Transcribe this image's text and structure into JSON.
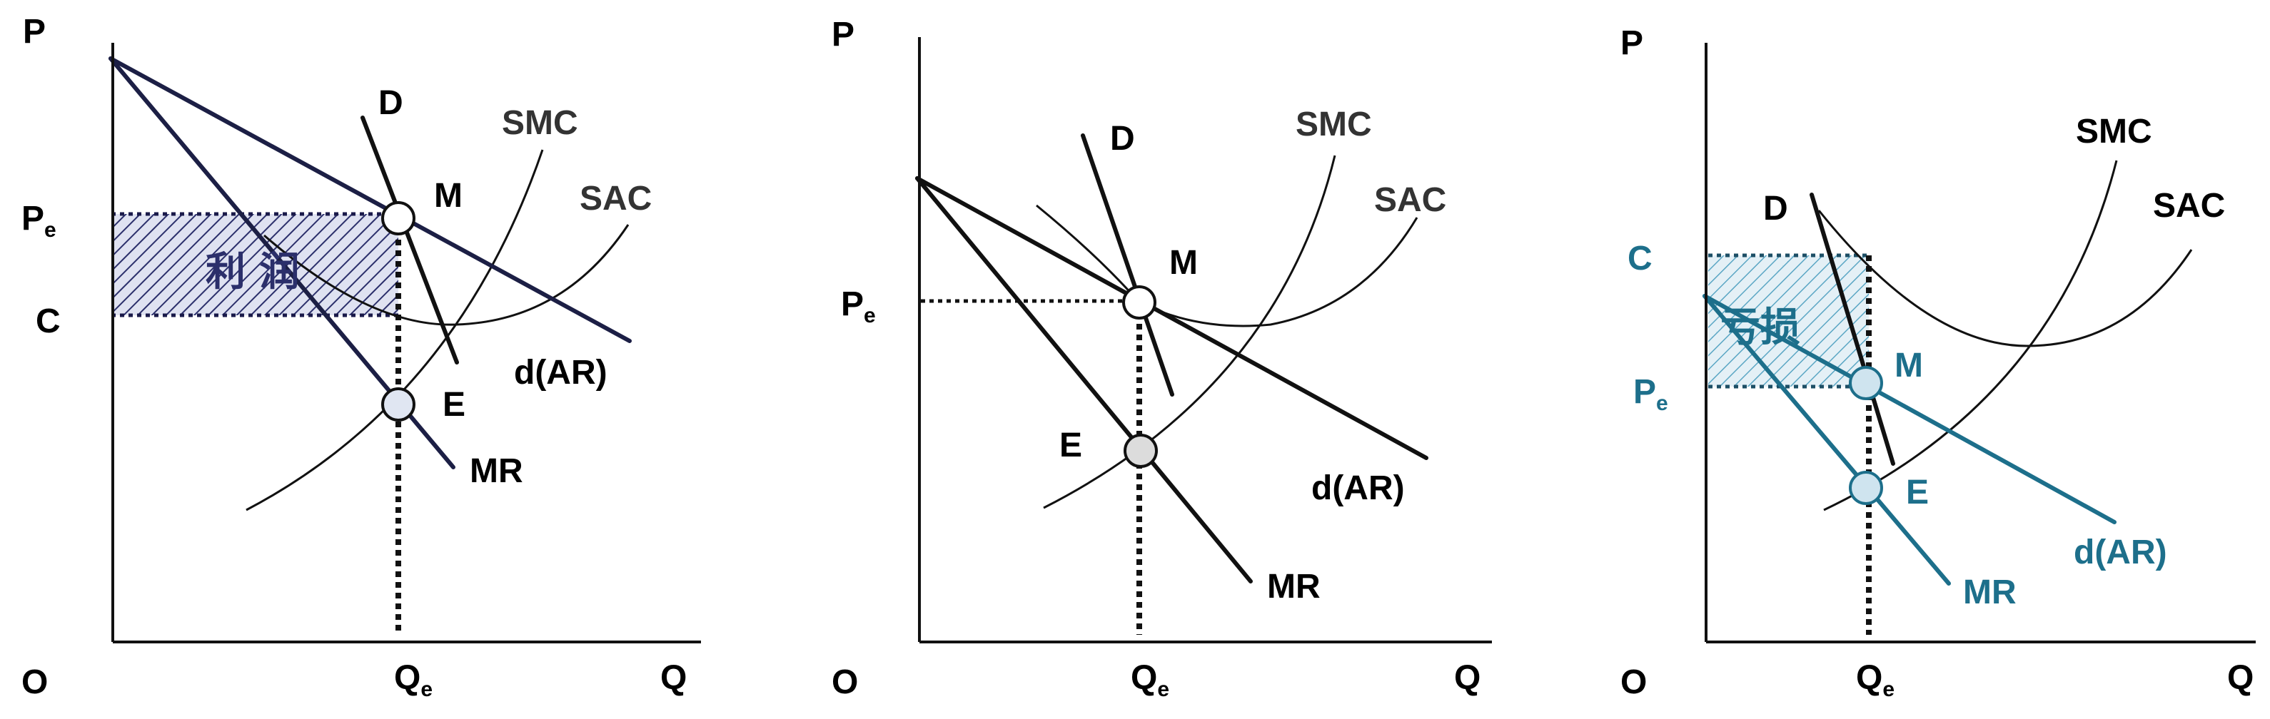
{
  "colors": {
    "ink": "#111111",
    "teal": "#1d6f8b",
    "profit_fill": "#2b2f6b",
    "loss_fill": "#5aa6c4"
  },
  "panels": [
    {
      "axis_p": "P",
      "axis_q": "Q",
      "origin": "O",
      "pe": "P",
      "pe_sub": "e",
      "c": "C",
      "qe": "Q",
      "qe_sub": "e",
      "d": "D",
      "smc": "SMC",
      "sac": "SAC",
      "m": "M",
      "e": "E",
      "dar": "d(AR)",
      "mr": "MR",
      "area": "利 润"
    },
    {
      "axis_p": "P",
      "axis_q": "Q",
      "origin": "O",
      "pe": "P",
      "pe_sub": "e",
      "qe": "Q",
      "qe_sub": "e",
      "d": "D",
      "smc": "SMC",
      "sac": "SAC",
      "m": "M",
      "e": "E",
      "dar": "d(AR)",
      "mr": "MR"
    },
    {
      "axis_p": "P",
      "axis_q": "Q",
      "origin": "O",
      "c": "C",
      "pe": "P",
      "pe_sub": "e",
      "qe": "Q",
      "qe_sub": "e",
      "d": "D",
      "smc": "SMC",
      "sac": "SAC",
      "m": "M",
      "e": "E",
      "dar": "d(AR)",
      "mr": "MR",
      "area": "亏损"
    }
  ]
}
